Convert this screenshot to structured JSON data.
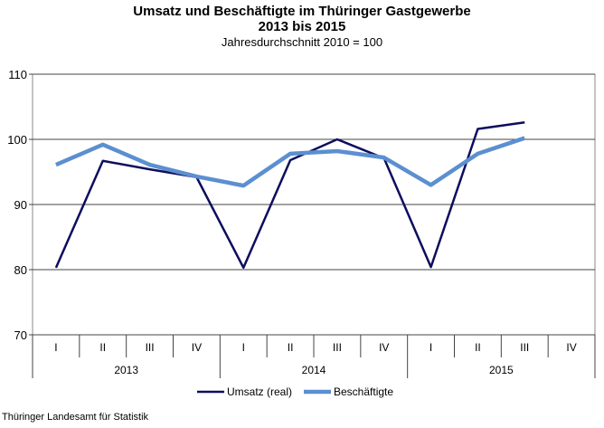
{
  "chart_data": {
    "type": "line",
    "title": "Umsatz und Beschäftigte im Thüringer Gastgewerbe",
    "title_line2": "2013 bis 2015",
    "subtitle": "Jahresdurchschnitt 2010 = 100",
    "categories": [
      "I",
      "II",
      "III",
      "IV",
      "I",
      "II",
      "III",
      "IV",
      "I",
      "II",
      "III",
      "IV"
    ],
    "groups": [
      {
        "label": "2013",
        "span": 4
      },
      {
        "label": "2014",
        "span": 4
      },
      {
        "label": "2015",
        "span": 4
      }
    ],
    "ylim": [
      70,
      110
    ],
    "yticks": [
      70,
      80,
      90,
      100,
      110
    ],
    "grid": true,
    "legend": "bottom",
    "series": [
      {
        "name": "Umsatz (real)",
        "color": "#0d0d5e",
        "values": [
          80.3,
          96.7,
          95.4,
          94.2,
          80.3,
          96.8,
          100.0,
          97.1,
          80.4,
          101.6,
          102.6,
          null
        ]
      },
      {
        "name": "Beschäftigte",
        "color": "#5b8fd0",
        "values": [
          96.1,
          99.2,
          96.1,
          94.3,
          92.9,
          97.8,
          98.2,
          97.2,
          93.0,
          97.8,
          100.2,
          null
        ]
      }
    ]
  },
  "source": "Thüringer Landesamt für Statistik"
}
